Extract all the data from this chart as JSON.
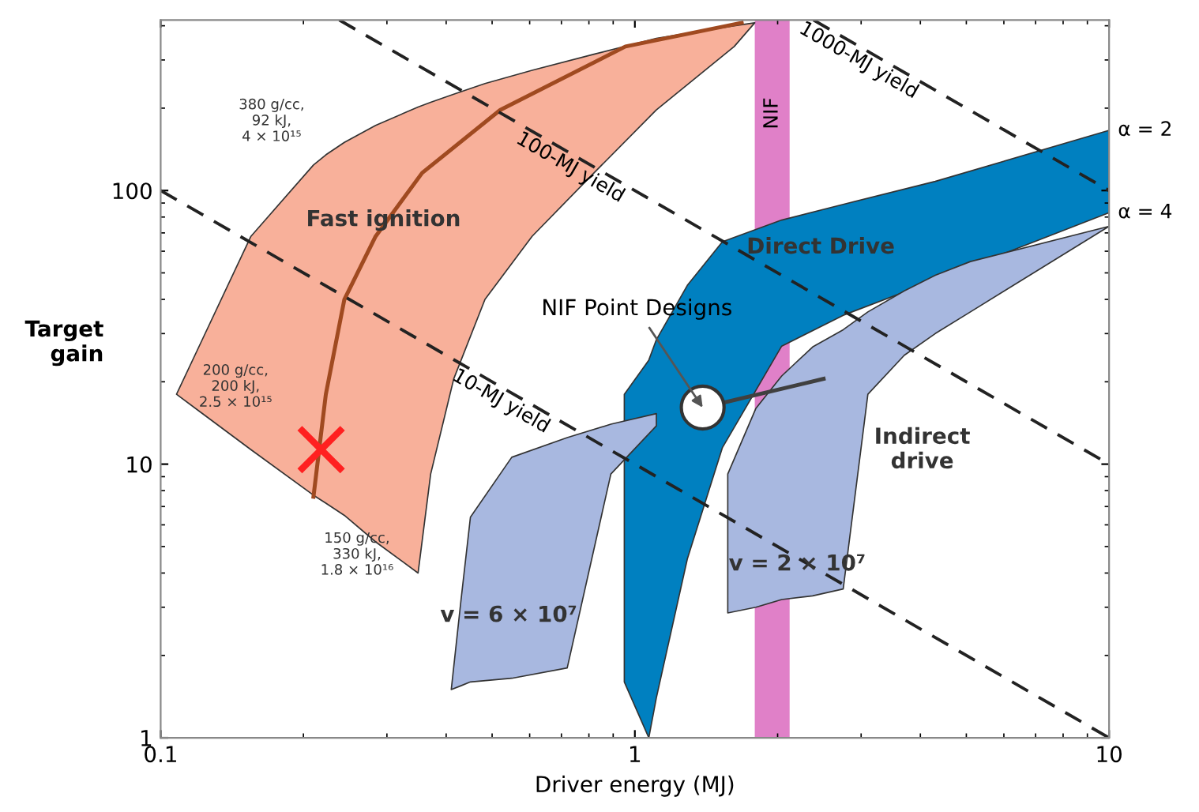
{
  "chart_data": {
    "type": "area",
    "xlabel": "Driver energy (MJ)",
    "ylabel": "Target\ngain",
    "log": "xy",
    "xlim": [
      0.1,
      10
    ],
    "xticks": [
      0.1,
      1,
      10
    ],
    "ylim": [
      1,
      420
    ],
    "yticks": [
      1,
      10,
      100
    ],
    "grid": false,
    "series": [
      {
        "color": "#f8b09a",
        "x": [
          0.108,
          0.155,
          0.21,
          0.223,
          0.244,
          0.284,
          0.349,
          0.371,
          0.415,
          0.483,
          0.607,
          0.82,
          1.11,
          1.62,
          1.79
        ],
        "values": [
          null,
          null,
          null,
          null,
          null,
          null,
          null,
          null,
          null,
          null,
          null,
          null,
          null,
          null,
          null
        ],
        "upper": [
          18,
          68,
          124,
          135,
          150,
          173,
          202,
          210,
          225,
          246,
          275,
          315,
          360,
          400,
          410
        ],
        "lower": [
          18,
          11.3,
          7.7,
          7.2,
          6.5,
          5.2,
          4.0,
          9.2,
          20.5,
          40,
          68,
          116,
          197,
          336,
          410
        ]
      },
      {
        "type": "line",
        "color": "#a04a20",
        "x": [
          0.21,
          0.223,
          0.244,
          0.284,
          0.356,
          0.52,
          0.955,
          1.68
        ],
        "values": [
          7.6,
          18,
          40,
          68,
          116,
          197,
          336,
          410
        ]
      },
      {
        "color": "#0080c0",
        "x": [
          0.95,
          1.07,
          1.11,
          1.29,
          1.53,
          2.04,
          2.75,
          4.3,
          10
        ],
        "values": [
          null,
          null,
          null,
          null,
          null,
          null,
          null,
          null,
          null
        ],
        "upper": [
          18,
          24,
          28.5,
          45,
          65,
          78,
          89,
          108,
          166
        ],
        "lower": [
          1.6,
          1,
          1.4,
          4.5,
          11.5,
          27,
          35,
          47,
          83
        ]
      },
      {
        "color": "#a8b8e0",
        "x": [
          0.41,
          0.43,
          0.45,
          0.55,
          0.72,
          0.89,
          1.11
        ],
        "values": [
          null,
          null,
          null,
          null,
          null,
          null,
          null
        ],
        "upper": [
          1.5,
          3.2,
          6.4,
          10.6,
          12.5,
          14,
          15.3
        ],
        "lower": [
          1.5,
          1.55,
          1.6,
          1.65,
          1.8,
          9.2,
          13.8
        ]
      },
      {
        "color": "#a8b8e0",
        "x": [
          1.57,
          1.8,
          2.04,
          2.37,
          2.75,
          3.1,
          3.7,
          4.3,
          5.1,
          10
        ],
        "values": [
          null,
          null,
          null,
          null,
          null,
          null,
          null,
          null,
          null,
          null
        ],
        "upper": [
          9.2,
          16,
          21,
          26.8,
          31,
          36,
          43,
          49,
          55,
          74
        ],
        "lower": [
          2.86,
          3.0,
          3.2,
          3.3,
          3.5,
          18,
          25,
          30,
          36,
          74
        ]
      },
      {
        "type": "line",
        "color": "#404040",
        "x": [
          1.39,
          2.5
        ],
        "values": [
          16.1,
          20.5
        ]
      },
      {
        "type": "line",
        "color": "#222222",
        "line_style": "dashed",
        "x": [
          0.1,
          10
        ],
        "values": [
          100,
          1
        ]
      },
      {
        "type": "line",
        "color": "#222222",
        "line_style": "dashed",
        "x": [
          0.238,
          10
        ],
        "values": [
          420,
          10
        ]
      },
      {
        "type": "line",
        "color": "#222222",
        "line_style": "dashed",
        "x": [
          2.38,
          10
        ],
        "values": [
          420,
          100
        ]
      },
      {
        "type": "scatter",
        "color": "#ffffff",
        "marker": "circle",
        "x": [
          1.39
        ],
        "values": [
          16.1
        ]
      },
      {
        "type": "scatter",
        "color": "#ff2020",
        "marker": "cross",
        "x": [
          0.218
        ],
        "values": [
          11.3
        ]
      }
    ],
    "bands": [
      {
        "axis": "x",
        "from": 1.79,
        "to": 2.12,
        "label": "NIF",
        "color": "#e080c8"
      }
    ],
    "annotations": [
      {
        "text": "Fast ignition",
        "x": 0.295,
        "y": 78
      },
      "Direct Drive",
      "Indirect\ndrive",
      {
        "text": "NIF Point Designs",
        "x": 1.39,
        "y": 16.1
      },
      "v = 6 × 10⁷",
      {
        "text": "v = 2 × 10⁷",
        "x": 2.2,
        "y": 4.3
      },
      {
        "text": "α = 2",
        "x": 10,
        "y": 166
      },
      {
        "text": "α = 4",
        "x": 10,
        "y": 83
      },
      {
        "text": "10-MJ yield",
        "x": 0.5,
        "y": 20
      },
      {
        "text": "100-MJ yield",
        "x": 0.7,
        "y": 143
      },
      {
        "text": "1000-MJ yield",
        "x": 2.84,
        "y": 352
      },
      "380 g/cc,\n92 kJ,\n4 × 10¹⁵",
      "200 g/cc,\n200 kJ,\n2.5 × 10¹⁵",
      "150 g/cc,\n330 kJ,\n1.8 × 10¹⁶"
    ]
  }
}
